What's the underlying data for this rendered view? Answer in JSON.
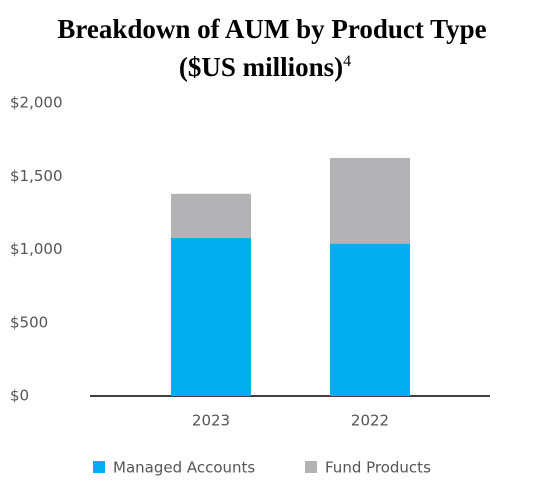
{
  "chart_data": {
    "type": "stacked_bar",
    "title": "Breakdown of AUM by Product Type",
    "subtitle": "($US millions)",
    "title_footnote": "4",
    "categories": [
      "2023",
      "2022"
    ],
    "series": [
      {
        "name": "Managed Accounts",
        "color": "#00aeef",
        "values": [
          1080,
          1040
        ]
      },
      {
        "name": "Fund Products",
        "color": "#b3b3b6",
        "values": [
          300,
          585
        ]
      }
    ],
    "ylim": [
      0,
      2000
    ],
    "yticks": [
      {
        "value": 0,
        "label": "$0"
      },
      {
        "value": 500,
        "label": "$500"
      },
      {
        "value": 1000,
        "label": "$1,000"
      },
      {
        "value": 1500,
        "label": "$1,500"
      },
      {
        "value": 2000,
        "label": "$2,000"
      }
    ],
    "grid": false,
    "legend": "bottom"
  }
}
